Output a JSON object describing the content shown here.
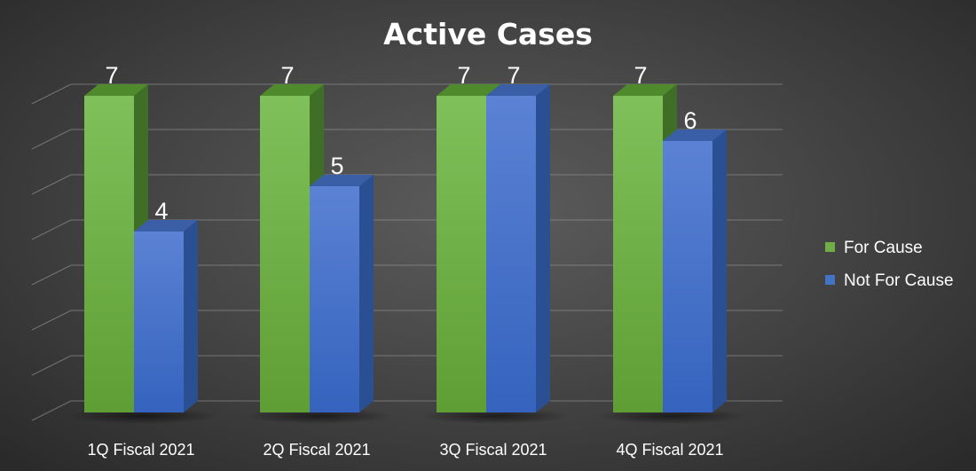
{
  "chart_data": {
    "type": "bar",
    "title": "Active Cases",
    "categories": [
      "1Q Fiscal 2021",
      "2Q Fiscal 2021",
      "3Q Fiscal 2021",
      "4Q Fiscal 2021"
    ],
    "series": [
      {
        "name": "For Cause",
        "values": [
          7,
          7,
          7,
          7
        ],
        "color": "#70ad47"
      },
      {
        "name": "Not For Cause",
        "values": [
          4,
          5,
          7,
          6
        ],
        "color": "#4472c4"
      }
    ],
    "ylim": [
      0,
      7.5
    ],
    "grid": true,
    "legend": "right",
    "style": "3d-clustered-column"
  }
}
